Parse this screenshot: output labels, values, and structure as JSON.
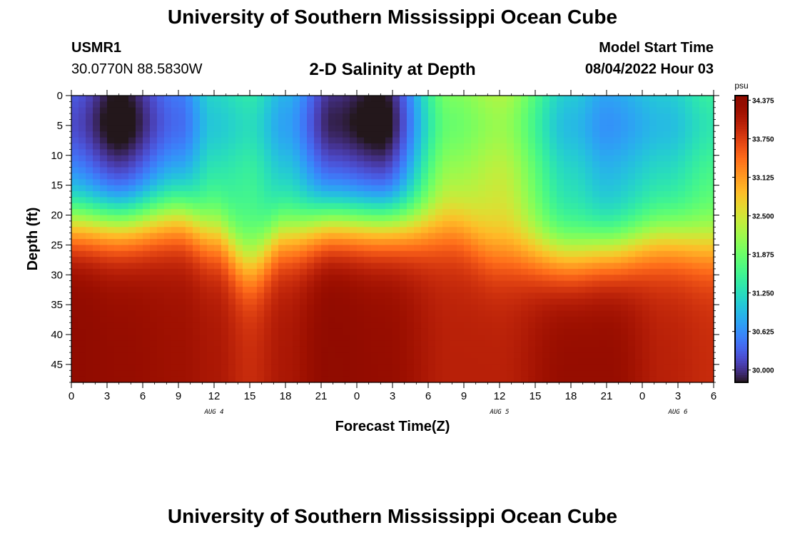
{
  "page": {
    "title": "University of Southern Mississippi Ocean Cube",
    "footer_title": "University of Southern Mississippi Ocean Cube",
    "station": "USMR1",
    "coords": "30.0770N  88.5830W",
    "chart_heading": "2-D Salinity at Depth",
    "model_label": "Model Start Time",
    "model_value": "08/04/2022 Hour 03"
  },
  "chart_data": {
    "type": "heatmap",
    "title": "2-D Salinity at Depth",
    "xlabel": "Forecast Time(Z)",
    "ylabel": "Depth (ft)",
    "x_tick_labels": [
      "0",
      "3",
      "6",
      "9",
      "12",
      "15",
      "18",
      "21",
      "0",
      "3",
      "6",
      "9",
      "12",
      "15",
      "18",
      "21",
      "0",
      "3",
      "6"
    ],
    "x_range_hours": [
      0,
      54
    ],
    "date_labels": [
      {
        "label": "AUG 4",
        "hour": 12
      },
      {
        "label": "AUG 5",
        "hour": 36
      },
      {
        "label": "AUG 6",
        "hour": 51
      }
    ],
    "y_ticks": [
      0,
      5,
      10,
      15,
      20,
      25,
      30,
      35,
      40,
      45
    ],
    "y_range": [
      0,
      48
    ],
    "y_inverted": true,
    "colorbar": {
      "unit": "psu",
      "min": 29.8,
      "max": 34.45,
      "ticks": [
        "34.375",
        "33.750",
        "33.125",
        "32.500",
        "31.875",
        "31.250",
        "30.625",
        "30.000"
      ],
      "colormap": "turbo"
    },
    "profiles": [
      {
        "hour": 0,
        "halocline_ft": 17,
        "surface_psu": 30.4,
        "bottom_psu": 34.4
      },
      {
        "hour": 4,
        "halocline_ft": 17,
        "surface_psu": 29.9,
        "bottom_psu": 34.3
      },
      {
        "hour": 9,
        "halocline_ft": 16,
        "surface_psu": 30.6,
        "bottom_psu": 34.2
      },
      {
        "hour": 12,
        "halocline_ft": 19,
        "surface_psu": 31.3,
        "bottom_psu": 34.1
      },
      {
        "hour": 15,
        "halocline_ft": 24,
        "surface_psu": 31.5,
        "bottom_psu": 33.9
      },
      {
        "hour": 18,
        "halocline_ft": 19,
        "surface_psu": 31.0,
        "bottom_psu": 34.1
      },
      {
        "hour": 22,
        "halocline_ft": 17,
        "surface_psu": 30.1,
        "bottom_psu": 34.4
      },
      {
        "hour": 26,
        "halocline_ft": 17,
        "surface_psu": 29.9,
        "bottom_psu": 34.3
      },
      {
        "hour": 32,
        "halocline_ft": 18,
        "surface_psu": 32.1,
        "bottom_psu": 34.0
      },
      {
        "hour": 36,
        "halocline_ft": 22,
        "surface_psu": 32.4,
        "bottom_psu": 34.0
      },
      {
        "hour": 42,
        "halocline_ft": 23,
        "surface_psu": 31.2,
        "bottom_psu": 34.3
      },
      {
        "hour": 45,
        "halocline_ft": 22,
        "surface_psu": 30.9,
        "bottom_psu": 34.3
      },
      {
        "hour": 50,
        "halocline_ft": 20,
        "surface_psu": 31.2,
        "bottom_psu": 34.0
      },
      {
        "hour": 54,
        "halocline_ft": 21,
        "surface_psu": 31.6,
        "bottom_psu": 33.9
      }
    ]
  }
}
